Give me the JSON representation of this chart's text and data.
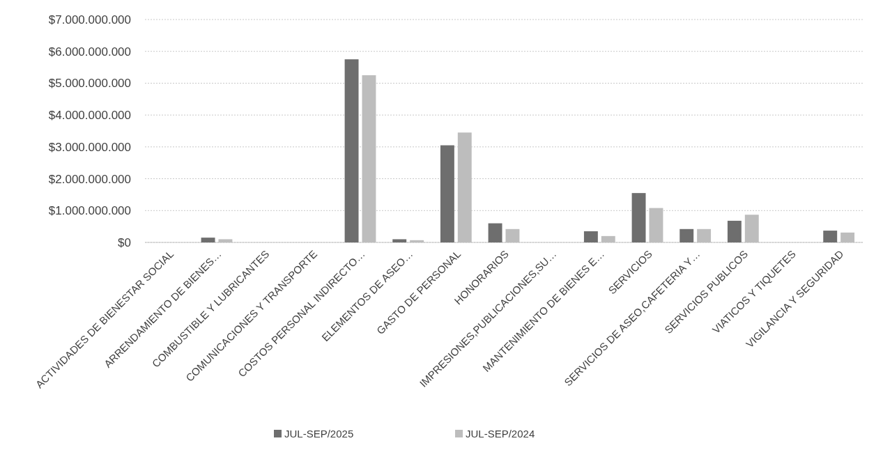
{
  "chart_data": {
    "type": "bar",
    "categories": [
      "ACTIVIDADES DE BIENESTAR SOCIAL",
      "ARRENDAMIENTO DE BIENES…",
      "COMBUSTIBLE Y LUBRICANTES",
      "COMUNICACIONES Y TRANSPORTE",
      "COSTOS PERSONAL INDIRECTO…",
      "ELEMENTOS DE ASEO…",
      "GASTO DE PERSONAL",
      "HONORARIOS",
      "IMPRESIONES,PUBLICACIONES,SU…",
      "MANTENIMIENTO DE BIENES E…",
      "SERVICIOS",
      "SERVICIOS DE ASEO,CAFETERIA Y…",
      "SERVICIOS PUBLICOS",
      "VIATICOS Y TIQUETES",
      "VIGILANCIA Y SEGURIDAD"
    ],
    "series": [
      {
        "name": "JUL-SEP/2025",
        "color": "#6e6e6e",
        "values": [
          0,
          150000000,
          0,
          0,
          5750000000,
          100000000,
          3050000000,
          600000000,
          0,
          350000000,
          1550000000,
          420000000,
          680000000,
          0,
          370000000
        ]
      },
      {
        "name": "JUL-SEP/2024",
        "color": "#bdbdbd",
        "values": [
          0,
          100000000,
          0,
          0,
          5250000000,
          70000000,
          3450000000,
          420000000,
          0,
          200000000,
          1080000000,
          420000000,
          870000000,
          0,
          310000000
        ]
      }
    ],
    "ylim": [
      0,
      7000000000
    ],
    "yticks": [
      {
        "value": 0,
        "label": "$0"
      },
      {
        "value": 1000000000,
        "label": "$1.000.000.000"
      },
      {
        "value": 2000000000,
        "label": "$2.000.000.000"
      },
      {
        "value": 3000000000,
        "label": "$3.000.000.000"
      },
      {
        "value": 4000000000,
        "label": "$4.000.000.000"
      },
      {
        "value": 5000000000,
        "label": "$5.000.000.000"
      },
      {
        "value": 6000000000,
        "label": "$6.000.000.000"
      },
      {
        "value": 7000000000,
        "label": "$7.000.000.000"
      }
    ],
    "grid": "y",
    "legend": "bottom"
  }
}
